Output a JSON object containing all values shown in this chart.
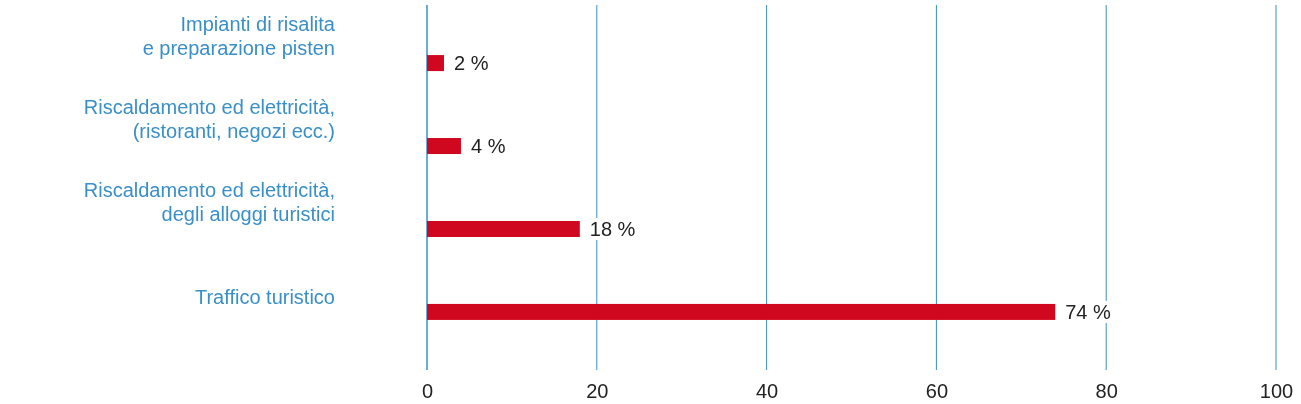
{
  "chart_data": {
    "type": "bar",
    "orientation": "horizontal",
    "categories": [
      "Impianti di risalita\ne preparazione pisten",
      "Riscaldamento ed elettricità,\n(ristoranti, negozi ecc.)",
      "Riscaldamento ed elettricità,\ndegli alloggi turistici",
      "Traffico turistico"
    ],
    "values": [
      2,
      4,
      18,
      74
    ],
    "value_labels": [
      "2 %",
      "4 %",
      "18 %",
      "74 %"
    ],
    "color": "#d0081f",
    "xlim": [
      0,
      100
    ],
    "xticks": [
      0,
      20,
      40,
      60,
      80,
      100
    ],
    "grid": "x"
  }
}
